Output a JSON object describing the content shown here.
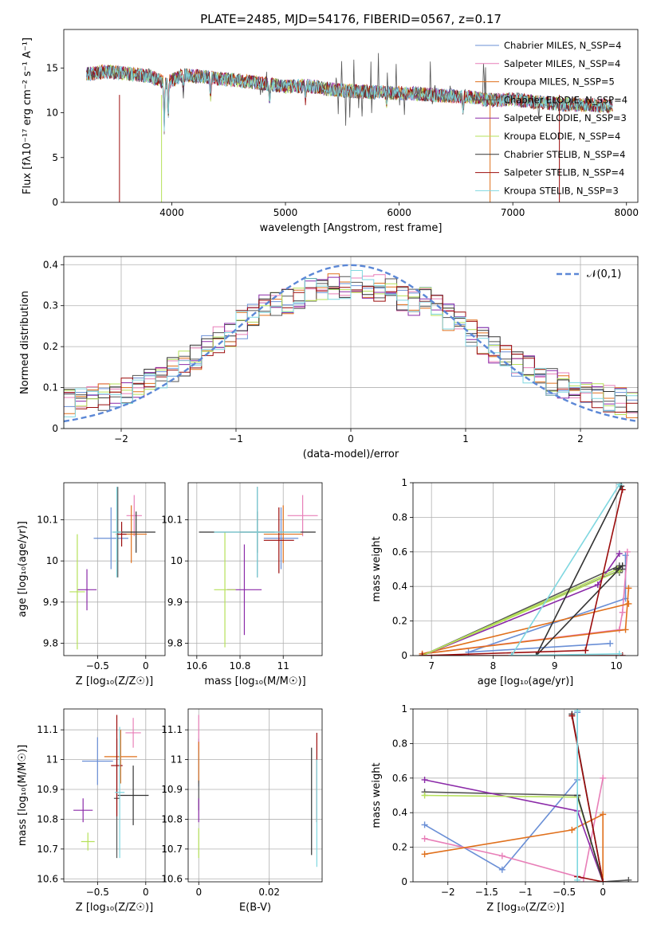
{
  "title": "PLATE=2485, MJD=54176, FIBERID=0567, z=0.17",
  "colors": [
    "#6a8fd6",
    "#e87fb8",
    "#e0701c",
    "#555555",
    "#8b2aa8",
    "#b6e15a",
    "#333333",
    "#9b0c0c",
    "#7fd7e0"
  ],
  "chart_data": [
    {
      "id": "spectrum",
      "type": "line",
      "xlabel": "wavelength [Angstrom, rest frame]",
      "ylabel": "Flux [fλ10⁻¹⁷ erg cm⁻² s⁻¹ A⁻¹]",
      "xlim": [
        3050,
        8100
      ],
      "ylim": [
        0,
        19.3
      ],
      "xticks": [
        4000,
        5000,
        6000,
        7000,
        8000
      ],
      "yticks": [
        0,
        5,
        10,
        15
      ],
      "legend": "top-right",
      "series": [
        {
          "name": "Chabrier MILES, N_SSP=4",
          "color": "#6a8fd6"
        },
        {
          "name": "Salpeter MILES, N_SSP=4",
          "color": "#e87fb8"
        },
        {
          "name": "Kroupa MILES, N_SSP=5",
          "color": "#e0701c"
        },
        {
          "name": "Chabrier ELODIE, N_SSP=4",
          "color": "#555555"
        },
        {
          "name": "Salpeter ELODIE, N_SSP=3",
          "color": "#8b2aa8"
        },
        {
          "name": "Kroupa ELODIE, N_SSP=4",
          "color": "#b6e15a"
        },
        {
          "name": "Chabrier STELIB, N_SSP=4",
          "color": "#333333"
        },
        {
          "name": "Salpeter STELIB, N_SSP=4",
          "color": "#9b0c0c"
        },
        {
          "name": "Kroupa STELIB, N_SSP=3",
          "color": "#7fd7e0"
        }
      ],
      "continuum": [
        [
          3250,
          14.3
        ],
        [
          3400,
          14.6
        ],
        [
          3600,
          14.4
        ],
        [
          3800,
          14.1
        ],
        [
          3950,
          13.3
        ],
        [
          4100,
          14.2
        ],
        [
          4300,
          14.0
        ],
        [
          4500,
          13.7
        ],
        [
          4800,
          13.3
        ],
        [
          5000,
          12.9
        ],
        [
          5200,
          13.0
        ],
        [
          5400,
          12.6
        ],
        [
          5600,
          12.4
        ],
        [
          5800,
          12.3
        ],
        [
          6000,
          12.2
        ],
        [
          6200,
          12.1
        ],
        [
          6400,
          11.9
        ],
        [
          6600,
          11.8
        ],
        [
          6800,
          11.4
        ],
        [
          7000,
          11.5
        ],
        [
          7200,
          11.2
        ],
        [
          7400,
          11.0
        ],
        [
          7600,
          10.9
        ],
        [
          7800,
          10.8
        ],
        [
          7880,
          10.8
        ]
      ]
    },
    {
      "id": "residuals",
      "type": "histogram",
      "xlabel": "(data-model)/error",
      "ylabel": "Normed distribution",
      "xlim": [
        -2.5,
        2.5
      ],
      "ylim": [
        0,
        0.42
      ],
      "xticks": [
        -2,
        -1,
        0,
        1,
        2
      ],
      "yticks": [
        0.0,
        0.1,
        0.2,
        0.3,
        0.4
      ],
      "bin_width": 0.1,
      "gaussian_label": "𝒩(0,1)",
      "gaussian_color": "#5b87d6"
    },
    {
      "id": "z_age",
      "type": "scatter",
      "xlabel": "Z [log₁₀(Z/Z☉)]",
      "ylabel": "age  [log₁₀(age/yr)]",
      "xlim": [
        -0.85,
        0.2
      ],
      "ylim": [
        9.77,
        10.19
      ],
      "xticks": [
        -0.5,
        0.0
      ],
      "yticks": [
        9.8,
        9.9,
        10.0,
        10.1
      ],
      "points": [
        {
          "x": -0.36,
          "y": 10.055,
          "xerr": 0.18,
          "yerr": 0.075
        },
        {
          "x": -0.12,
          "y": 10.11,
          "xerr": 0.08,
          "yerr": 0.05
        },
        {
          "x": -0.15,
          "y": 10.065,
          "xerr": 0.16,
          "yerr": 0.07
        },
        {
          "x": -0.29,
          "y": 10.07,
          "xerr": 0.05,
          "yerr": 0.11
        },
        {
          "x": -0.61,
          "y": 9.93,
          "xerr": 0.1,
          "yerr": 0.05
        },
        {
          "x": -0.71,
          "y": 9.925,
          "xerr": 0.08,
          "yerr": 0.14
        },
        {
          "x": -0.1,
          "y": 10.07,
          "xerr": 0.2,
          "yerr": 0.05
        },
        {
          "x": -0.25,
          "y": 10.065,
          "xerr": 0.05,
          "yerr": 0.03
        },
        {
          "x": -0.3,
          "y": 10.07,
          "xerr": 0.05,
          "yerr": 0.11
        }
      ]
    },
    {
      "id": "mass_age",
      "type": "scatter",
      "xlabel": "mass [log₁₀(M/M☉)]",
      "ylabel": "",
      "xlim": [
        10.56,
        11.18
      ],
      "ylim": [
        9.77,
        10.19
      ],
      "xticks": [
        10.6,
        10.8,
        11.0
      ],
      "yticks": [
        9.8,
        9.9,
        10.0,
        10.1
      ],
      "points": [
        {
          "x": 10.99,
          "y": 10.055,
          "xerr": 0.08,
          "yerr": 0.075
        },
        {
          "x": 11.09,
          "y": 10.11,
          "xerr": 0.07,
          "yerr": 0.05
        },
        {
          "x": 11.0,
          "y": 10.065,
          "xerr": 0.09,
          "yerr": 0.07
        },
        {
          "x": 10.88,
          "y": 10.07,
          "xerr": 0.08,
          "yerr": 0.11
        },
        {
          "x": 10.82,
          "y": 9.93,
          "xerr": 0.08,
          "yerr": 0.11
        },
        {
          "x": 10.73,
          "y": 9.93,
          "xerr": 0.05,
          "yerr": 0.14
        },
        {
          "x": 10.88,
          "y": 10.07,
          "xerr": 0.27,
          "yerr": 0.05
        },
        {
          "x": 10.98,
          "y": 10.05,
          "xerr": 0.07,
          "yerr": 0.08
        },
        {
          "x": 10.88,
          "y": 10.07,
          "xerr": 0.2,
          "yerr": 0.11
        }
      ]
    },
    {
      "id": "age_weight",
      "type": "line",
      "xlabel": "age  [log₁₀(age/yr)]",
      "ylabel": "mass weight",
      "xlim": [
        6.7,
        10.35
      ],
      "ylim": [
        0,
        1
      ],
      "xticks": [
        7,
        8,
        9,
        10
      ],
      "yticks": [
        0.0,
        0.2,
        0.4,
        0.6,
        0.8,
        1.0
      ],
      "series": [
        {
          "points": [
            [
              9.9,
              0.07
            ],
            [
              7.6,
              0.02
            ],
            [
              10.15,
              0.33
            ],
            [
              10.15,
              0.58
            ]
          ]
        },
        {
          "points": [
            [
              10.18,
              0.6
            ],
            [
              10.1,
              0.25
            ],
            [
              10.05,
              0.15
            ],
            [
              6.85,
              0.01
            ]
          ]
        },
        {
          "points": [
            [
              10.2,
              0.39
            ],
            [
              10.15,
              0.15
            ],
            [
              6.85,
              0.01
            ],
            [
              10.2,
              0.3
            ]
          ]
        },
        {
          "points": [
            [
              10.05,
              0.52
            ],
            [
              6.85,
              0.0
            ],
            [
              10.1,
              0.5
            ],
            [
              10.05,
              0.48
            ]
          ]
        },
        {
          "points": [
            [
              10.05,
              0.59
            ],
            [
              9.7,
              0.41
            ],
            [
              6.85,
              0.0
            ]
          ]
        },
        {
          "points": [
            [
              10.02,
              0.5
            ],
            [
              6.85,
              0.0
            ],
            [
              10.05,
              0.49
            ]
          ]
        },
        {
          "points": [
            [
              10.08,
              0.98
            ],
            [
              8.7,
              0.0
            ],
            [
              10.1,
              0.52
            ],
            [
              10.0,
              0.5
            ]
          ]
        },
        {
          "points": [
            [
              10.1,
              0.96
            ],
            [
              9.5,
              0.03
            ],
            [
              6.85,
              0.0
            ],
            [
              10.1,
              0.0
            ]
          ]
        },
        {
          "points": [
            [
              10.05,
              0.99
            ],
            [
              8.3,
              0.0
            ],
            [
              10.05,
              0.01
            ]
          ]
        }
      ]
    },
    {
      "id": "z_mass",
      "type": "scatter",
      "xlabel": "Z [log₁₀(Z/Z☉)]",
      "ylabel": "mass [log₁₀(M/M☉)]",
      "xlim": [
        -0.85,
        0.2
      ],
      "ylim": [
        10.59,
        11.17
      ],
      "xticks": [
        -0.5,
        0.0
      ],
      "yticks": [
        10.6,
        10.7,
        10.8,
        10.9,
        11.0,
        11.1
      ],
      "points": [
        {
          "x": -0.5,
          "y": 10.995,
          "xerr": 0.16,
          "yerr": 0.08
        },
        {
          "x": -0.13,
          "y": 11.09,
          "xerr": 0.08,
          "yerr": 0.05
        },
        {
          "x": -0.26,
          "y": 11.01,
          "xerr": 0.17,
          "yerr": 0.09
        },
        {
          "x": -0.3,
          "y": 10.87,
          "xerr": 0.03,
          "yerr": 0.2
        },
        {
          "x": -0.65,
          "y": 10.83,
          "xerr": 0.1,
          "yerr": 0.04
        },
        {
          "x": -0.6,
          "y": 10.725,
          "xerr": 0.07,
          "yerr": 0.03
        },
        {
          "x": -0.13,
          "y": 10.88,
          "xerr": 0.16,
          "yerr": 0.1
        },
        {
          "x": -0.3,
          "y": 10.98,
          "xerr": 0.06,
          "yerr": 0.17
        },
        {
          "x": -0.27,
          "y": 10.89,
          "xerr": 0.05,
          "yerr": 0.22
        }
      ]
    },
    {
      "id": "ebv_mass",
      "type": "scatter",
      "xlabel": "E(B-V)",
      "ylabel": "",
      "xlim": [
        -0.003,
        0.035
      ],
      "ylim": [
        10.59,
        11.17
      ],
      "xticks": [
        0.0,
        0.02
      ],
      "yticks": [
        10.6,
        10.7,
        10.8,
        10.9,
        11.0,
        11.1
      ],
      "points": [
        {
          "x": 0.0,
          "y": 10.99,
          "xerr": 0,
          "yerr": 0.08
        },
        {
          "x": 0.0,
          "y": 11.09,
          "xerr": 0,
          "yerr": 0.06
        },
        {
          "x": 0.0,
          "y": 10.99,
          "xerr": 0,
          "yerr": 0.07
        },
        {
          "x": 0.0,
          "y": 10.88,
          "xerr": 0,
          "yerr": 0.05
        },
        {
          "x": 0.0,
          "y": 10.83,
          "xerr": 0,
          "yerr": 0.04
        },
        {
          "x": 0.0,
          "y": 10.72,
          "xerr": 0,
          "yerr": 0.05
        },
        {
          "x": 0.032,
          "y": 10.86,
          "xerr": 0,
          "yerr": 0.18
        },
        {
          "x": 0.0335,
          "y": 10.94,
          "xerr": 0,
          "yerr": 0.15
        },
        {
          "x": 0.0335,
          "y": 10.82,
          "xerr": 0,
          "yerr": 0.18
        }
      ]
    },
    {
      "id": "z_weight",
      "type": "line",
      "xlabel": "Z [log₁₀(Z/Z☉)]",
      "ylabel": "mass weight",
      "xlim": [
        -2.45,
        0.45
      ],
      "ylim": [
        0,
        1
      ],
      "xticks": [
        -2.0,
        -1.5,
        -1.0,
        -0.5,
        0.0
      ],
      "yticks": [
        0.0,
        0.2,
        0.4,
        0.6,
        0.8,
        1.0
      ],
      "series": [
        {
          "points": [
            [
              -2.3,
              0.33
            ],
            [
              -1.3,
              0.07
            ],
            [
              -0.33,
              0.59
            ],
            [
              -0.33,
              0.98
            ]
          ]
        },
        {
          "points": [
            [
              -2.3,
              0.25
            ],
            [
              -1.3,
              0.15
            ],
            [
              -0.25,
              0.02
            ],
            [
              0.0,
              0.6
            ]
          ]
        },
        {
          "points": [
            [
              -2.3,
              0.16
            ],
            [
              -0.4,
              0.3
            ],
            [
              0.0,
              0.39
            ],
            [
              0.0,
              0.0
            ]
          ]
        },
        {
          "points": [
            [
              -2.3,
              0.52
            ],
            [
              -0.33,
              0.5
            ],
            [
              0.0,
              0.0
            ],
            [
              0.33,
              0.01
            ]
          ]
        },
        {
          "points": [
            [
              -2.3,
              0.59
            ],
            [
              -0.33,
              0.41
            ],
            [
              0.0,
              0.0
            ]
          ]
        },
        {
          "points": [
            [
              -2.3,
              0.5
            ],
            [
              -0.33,
              0.49
            ],
            [
              0.0,
              0.0
            ]
          ]
        },
        {
          "points": [
            [
              -0.4,
              0.97
            ],
            [
              0.0,
              0.0
            ],
            [
              -0.33,
              0.5
            ]
          ]
        },
        {
          "points": [
            [
              -0.33,
              0.03
            ],
            [
              0.0,
              0.0
            ],
            [
              -0.4,
              0.96
            ]
          ]
        },
        {
          "points": [
            [
              -0.33,
              0.99
            ],
            [
              -0.33,
              0.01
            ]
          ]
        }
      ]
    }
  ]
}
